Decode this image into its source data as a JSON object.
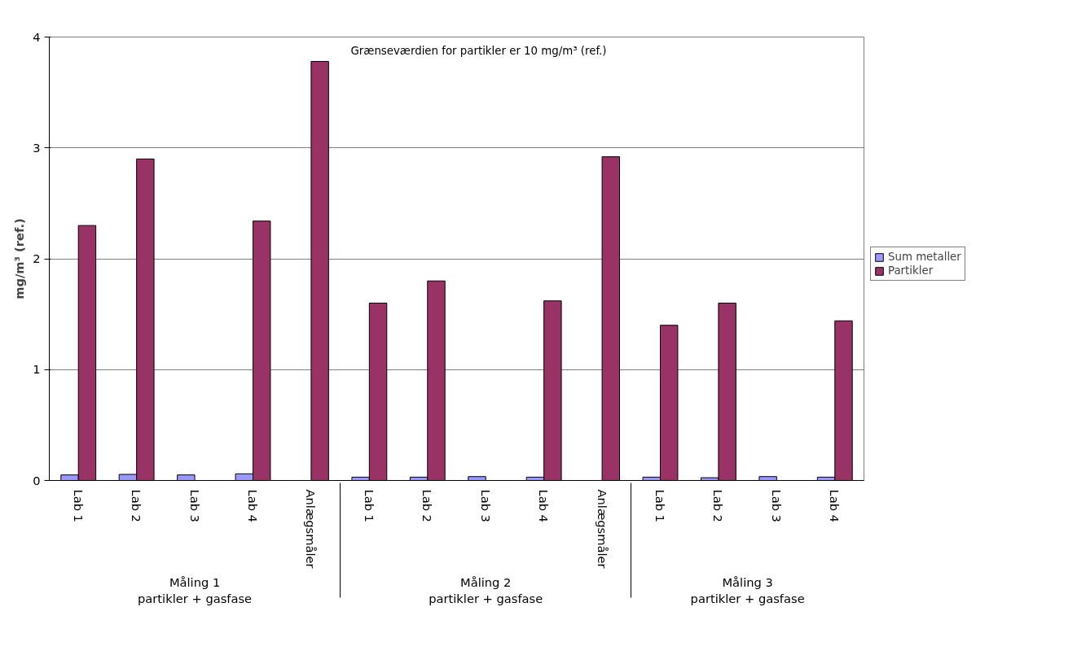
{
  "chart_data": {
    "type": "bar",
    "ylabel": "mg/m³ (ref.)",
    "categories": [
      "Lab 1",
      "Lab 2",
      "Lab 3",
      "Lab 4",
      "Anlægsmåler",
      "Lab 1",
      "Lab 2",
      "Lab 3",
      "Lab 4",
      "Anlægsmåler",
      "Lab 1",
      "Lab 2",
      "Lab 3",
      "Lab 4"
    ],
    "series": [
      {
        "name": "Sum metaller",
        "color": "#9999ff",
        "values": [
          0.05,
          0.055,
          0.05,
          0.06,
          null,
          0.03,
          0.03,
          0.035,
          0.03,
          null,
          0.03,
          0.025,
          0.035,
          0.03
        ]
      },
      {
        "name": "Partikler",
        "color": "#993366",
        "values": [
          2.3,
          2.9,
          null,
          2.34,
          3.78,
          1.6,
          1.8,
          null,
          1.62,
          2.92,
          1.4,
          1.6,
          null,
          1.44
        ]
      }
    ],
    "annotations": [
      "Grænseværdien for partikler er 10 mg/m³ (ref.)",
      "Måling 1\npartikler + gasfase",
      "Måling 2\npartikler + gasfase",
      "Måling 3\npartikler + gasfase"
    ],
    "ylim": [
      0,
      4
    ],
    "yticks": [
      0,
      1,
      2,
      3,
      4
    ],
    "grid": "y",
    "legend": "right"
  }
}
